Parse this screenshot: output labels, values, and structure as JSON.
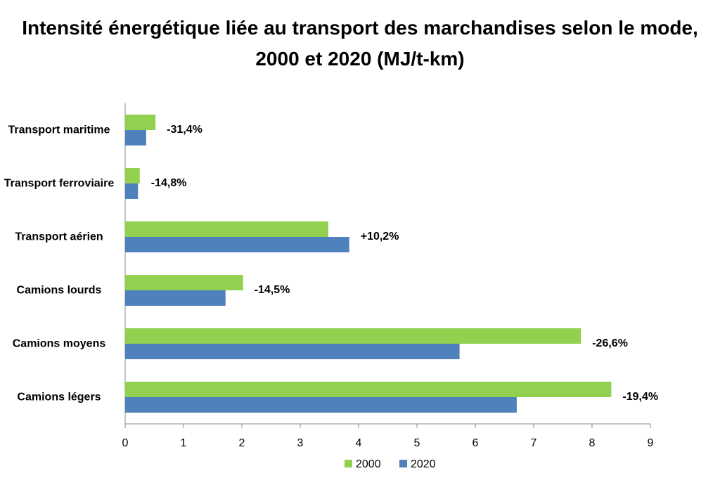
{
  "chart_data": {
    "type": "bar",
    "orientation": "horizontal",
    "title": "Intensité énergétique liée au transport des marchandises selon le mode, 2000 et 2020 (MJ/t-km)",
    "categories": [
      "Transport maritime",
      "Transport ferroviaire",
      "Transport aérien",
      "Camions lourds",
      "Camions moyens",
      "Camions légers"
    ],
    "series": [
      {
        "name": "2000",
        "color": "#92d050",
        "values": [
          0.52,
          0.25,
          3.48,
          2.02,
          7.81,
          8.33
        ]
      },
      {
        "name": "2020",
        "color": "#4f81bd",
        "values": [
          0.36,
          0.22,
          3.84,
          1.72,
          5.73,
          6.71
        ]
      }
    ],
    "annotations": [
      "-31,4%",
      "-14,8%",
      "+10,2%",
      "-14,5%",
      "-26,6%",
      "-19,4%"
    ],
    "xlim": [
      0,
      9
    ],
    "xticks": [
      0,
      1,
      2,
      3,
      4,
      5,
      6,
      7,
      8,
      9
    ],
    "grid": false,
    "legend": "bottom"
  }
}
